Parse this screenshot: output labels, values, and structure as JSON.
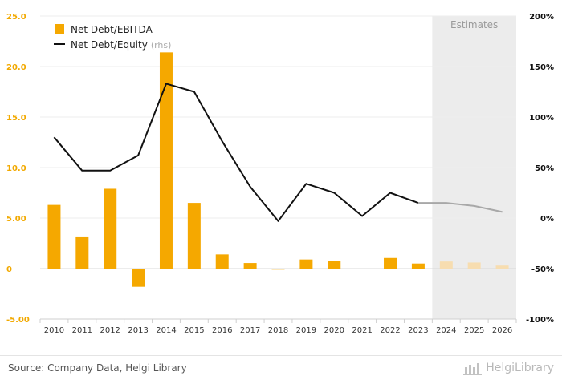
{
  "chart_data": {
    "type": "bar+line",
    "categories": [
      "2010",
      "2011",
      "2012",
      "2013",
      "2014",
      "2015",
      "2016",
      "2017",
      "2018",
      "2019",
      "2020",
      "2021",
      "2022",
      "2023",
      "2024",
      "2025",
      "2026"
    ],
    "series": [
      {
        "name": "Net Debt/EBITDA",
        "type": "bar",
        "axis": "left",
        "color": "#f5a800",
        "estimate_color": "#f7ddb0",
        "values": [
          6.3,
          3.1,
          7.9,
          -1.8,
          21.4,
          6.5,
          1.4,
          0.55,
          -0.1,
          0.9,
          0.75,
          0,
          1.05,
          0.5,
          0.7,
          0.6,
          0.3
        ]
      },
      {
        "name": "Net Debt/Equity",
        "name_suffix": "(rhs)",
        "type": "line",
        "axis": "right",
        "unit": "%",
        "color": "#111111",
        "estimate_color": "#a8a8a8",
        "values": [
          80,
          47,
          47,
          62,
          133,
          125,
          76,
          31,
          -3,
          34,
          25,
          2,
          25,
          15,
          15,
          12,
          6
        ]
      }
    ],
    "estimates_from_index": 14,
    "estimates_label": "Estimates",
    "y_left": {
      "min": -5,
      "max": 25,
      "step": 5,
      "tick_labels": [
        "-5.00",
        "0",
        "5.00",
        "10.0",
        "15.0",
        "20.0",
        "25.0"
      ]
    },
    "y_right": {
      "min": -100,
      "max": 200,
      "step": 50,
      "tick_labels": [
        "-100%",
        "-50%",
        "0%",
        "50%",
        "100%",
        "150%",
        "200%"
      ]
    },
    "grid": true,
    "legend_position": "top-left"
  },
  "footer": {
    "source": "Source: Company Data, Helgi Library",
    "brand": "HelgiLibrary"
  }
}
